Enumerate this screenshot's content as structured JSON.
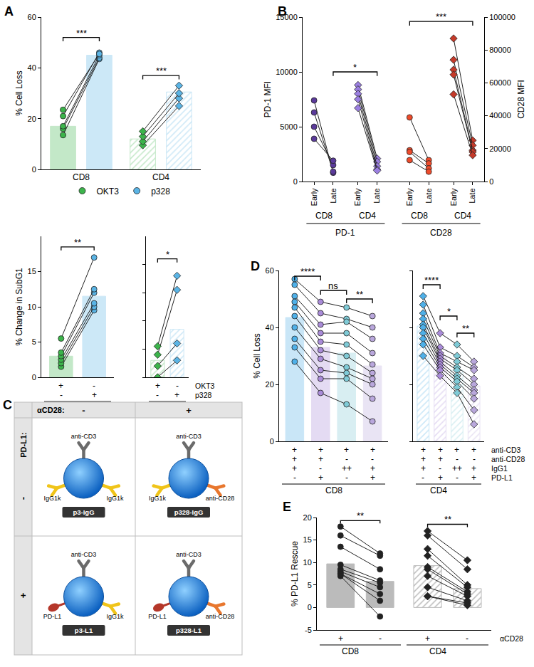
{
  "chart_data": [
    {
      "panel": "A",
      "type": "bar",
      "y_label": "% Cell Loss",
      "ylim": [
        0,
        60
      ],
      "yticks": [
        0,
        20,
        40,
        60
      ],
      "legend": "bottom",
      "conditions": [
        {
          "name": "OKT3",
          "color": "#3cb44b"
        },
        {
          "name": "p328",
          "color": "#5ab4e5"
        }
      ],
      "groups": [
        {
          "label": "CD8",
          "marker": "circle",
          "bars": [
            17,
            45
          ],
          "points": [
            [
              13.5,
              16,
              17,
              21,
              23.5
            ],
            [
              43.5,
              44,
              45,
              46,
              45.5
            ]
          ],
          "sig": [
            {
              "from": 0,
              "to": 1,
              "label": "***",
              "y": 52
            }
          ]
        },
        {
          "label": "CD4",
          "marker": "diamond",
          "bars": [
            12,
            30.5
          ],
          "points": [
            [
              9.5,
              11,
              13,
              15
            ],
            [
              25,
              28,
              30,
              33
            ]
          ],
          "sig": [
            {
              "from": 0,
              "to": 1,
              "label": "***",
              "y": 37
            }
          ]
        }
      ]
    },
    {
      "type": "bar",
      "y_label": "% Change in SubG1",
      "conditions": [
        {
          "color": "#3cb44b"
        },
        {
          "color": "#5ab4e5"
        }
      ],
      "rows": [
        {
          "label": "OKT3",
          "signs": [
            "+",
            "-"
          ]
        },
        {
          "label": "p328",
          "signs": [
            "-",
            "+"
          ]
        }
      ],
      "groups": [
        {
          "label": "CD8",
          "marker": "circle",
          "ylim": [
            0,
            20
          ],
          "yticks": [
            0,
            5,
            10,
            15
          ],
          "bars": [
            3,
            11.5
          ],
          "points": [
            [
              1.5,
              2,
              2.5,
              3,
              3.5,
              5.5
            ],
            [
              9.5,
              10,
              10.5,
              12,
              12.5,
              17
            ]
          ],
          "sig": [
            {
              "from": 0,
              "to": 1,
              "label": "**",
              "y": 18.5
            }
          ]
        },
        {
          "label": "CD4",
          "marker": "diamond",
          "ylim": [
            0,
            5
          ],
          "yticks": [
            0,
            1,
            2,
            3,
            4
          ],
          "tick_labels": false,
          "bars": [
            0.6,
            1.7
          ],
          "points": [
            [
              0,
              0.4,
              0.8,
              1.1
            ],
            [
              0.6,
              1.2,
              3.1,
              3.6
            ]
          ],
          "sig": [
            {
              "from": 0,
              "to": 1,
              "label": "*",
              "y": 4.2
            }
          ]
        }
      ]
    },
    {
      "panel": "B",
      "type": "scatter",
      "y_label": "PD-1 MFI",
      "y2_label": "CD28 MFI",
      "ylim": [
        0,
        15000
      ],
      "yticks": [
        0,
        5000,
        10000,
        15000
      ],
      "y2lim": [
        0,
        100000
      ],
      "y2ticks": [
        0,
        20000,
        40000,
        60000,
        80000,
        100000
      ],
      "x_labels": [
        "Early",
        "Late"
      ],
      "measures": [
        {
          "label": "PD-1",
          "axis": "y",
          "groups": [
            {
              "label": "CD8",
              "marker": "circle",
              "color": "#5b3a9b",
              "early": [
                7400,
                6300,
                5000,
                3900
              ],
              "late": [
                800,
                900,
                1500,
                1900
              ]
            },
            {
              "label": "CD4",
              "marker": "diamond",
              "color": "#9b7fe0",
              "early": [
                8800,
                8400,
                8000,
                7500,
                6700
              ],
              "late": [
                2100,
                1800,
                1400,
                1100,
                1000
              ]
            }
          ]
        },
        {
          "label": "CD28",
          "axis": "y2",
          "groups": [
            {
              "label": "CD8",
              "marker": "circle",
              "color": "#ee4b2b",
              "early": [
                39000,
                19000,
                18000,
                13000
              ],
              "late": [
                13000,
                11000,
                8000,
                6000
              ]
            },
            {
              "label": "CD4",
              "marker": "diamond",
              "color": "#c43a2a",
              "early": [
                87000,
                74000,
                68000,
                65000,
                53000
              ],
              "late": [
                25000,
                22000,
                19000,
                18000,
                16000
              ]
            }
          ]
        }
      ],
      "sig": [
        {
          "from": 1,
          "to": 3,
          "label": "*",
          "y": 10000
        },
        {
          "from": 4,
          "to": 7,
          "label": "***",
          "y": 14600
        }
      ]
    },
    {
      "panel": "D",
      "type": "bar",
      "y_label": "% Cell Loss",
      "ylim": [
        0,
        60
      ],
      "yticks": [
        0,
        20,
        40,
        60
      ],
      "conditions": [
        {
          "color": "#4fb0e8"
        },
        {
          "color": "#a98bd8"
        },
        {
          "color": "#7fcad6"
        },
        {
          "color": "#b9a7dc"
        }
      ],
      "rows": [
        {
          "label": "anti-CD3",
          "signs": [
            "+",
            "+",
            "+",
            "+"
          ]
        },
        {
          "label": "anti-CD28",
          "signs": [
            "+",
            "+",
            "-",
            "-"
          ]
        },
        {
          "label": "IgG1",
          "signs": [
            "+",
            "-",
            "++",
            "+"
          ]
        },
        {
          "label": "PD-L1",
          "signs": [
            "-",
            "+",
            "-",
            "+"
          ]
        }
      ],
      "groups": [
        {
          "label": "CD8",
          "marker": "circle",
          "bars": [
            43.5,
            33,
            31,
            26.5
          ],
          "points": [
            [
              57,
              55,
              51,
              49,
              47,
              44,
              40,
              36,
              33,
              28
            ],
            [
              49,
              45,
              41,
              38,
              35,
              32,
              29,
              25,
              22,
              17
            ],
            [
              47,
              43,
              42,
              38,
              34,
              30,
              26,
              24,
              22,
              13
            ],
            [
              44,
              40,
              36,
              31,
              27,
              24,
              22,
              20,
              15,
              7
            ]
          ],
          "sig": [
            {
              "from": 0,
              "to": 1,
              "label": "****",
              "y": 58
            },
            {
              "from": 1,
              "to": 2,
              "label": "ns",
              "y": 53
            },
            {
              "from": 2,
              "to": 3,
              "label": "**",
              "y": 50
            }
          ]
        },
        {
          "label": "CD4",
          "marker": "diamond",
          "tick_labels": false,
          "bars": [
            40.5,
            29.5,
            25,
            19.5
          ],
          "points": [
            [
              51,
              48,
              45,
              43,
              41,
              40,
              38,
              36,
              34,
              30
            ],
            [
              38,
              33,
              31,
              30,
              29,
              28,
              27,
              26,
              25,
              23
            ],
            [
              34,
              30,
              28,
              26,
              25,
              23,
              22,
              21,
              19,
              17
            ],
            [
              28,
              26,
              25,
              22,
              20,
              18,
              17,
              15,
              11,
              6
            ]
          ],
          "sig": [
            {
              "from": 0,
              "to": 1,
              "label": "****",
              "y": 55
            },
            {
              "from": 1,
              "to": 2,
              "label": "*",
              "y": 44
            },
            {
              "from": 2,
              "to": 3,
              "label": "**",
              "y": 38
            }
          ]
        }
      ]
    },
    {
      "panel": "E",
      "type": "bar",
      "y_label": "% PD-L1 Rescue",
      "ylim": [
        -5,
        20
      ],
      "yticks": [
        -5,
        0,
        5,
        10,
        15,
        20
      ],
      "conditions": [
        {
          "color": "#222222"
        },
        {
          "color": "#222222"
        }
      ],
      "rows": [
        {
          "label": "αCD28",
          "signs": [
            "+",
            "-"
          ]
        }
      ],
      "groups": [
        {
          "label": "CD8",
          "marker": "circle",
          "bars": [
            9.7,
            5.8
          ],
          "points": [
            [
              18,
              16,
              13.5,
              9.5,
              8.5,
              8,
              7.5,
              7.5,
              7
            ],
            [
              12,
              11.5,
              8.5,
              6,
              5.5,
              4.5,
              3,
              1.5,
              -2
            ]
          ],
          "sig": [
            {
              "from": 0,
              "to": 1,
              "label": "**",
              "y": 19.3
            }
          ]
        },
        {
          "label": "CD4",
          "marker": "diamond",
          "bars": [
            9.3,
            4.2
          ],
          "points": [
            [
              17,
              16,
              13,
              11.5,
              9,
              8.5,
              7,
              4.5,
              2.5,
              2.5
            ],
            [
              10.5,
              8.5,
              5,
              4.5,
              3.5,
              3,
              2.5,
              1.5,
              1,
              0.5
            ]
          ],
          "sig": [
            {
              "from": 0,
              "to": 1,
              "label": "**",
              "y": 18.5
            }
          ]
        }
      ]
    }
  ],
  "diagram": {
    "panel": "C",
    "column_header": "αCD28:",
    "columns": [
      "-",
      "+"
    ],
    "row_header": "PD-L1:",
    "rows": [
      "-",
      "+"
    ],
    "cells": [
      {
        "name": "p3-IgG",
        "top": "anti-CD3",
        "left": "IgG1k",
        "right": "IgG1k"
      },
      {
        "name": "p328-IgG",
        "top": "anti-CD3",
        "left": "IgG1k",
        "right": "anti-CD28"
      },
      {
        "name": "p3-L1",
        "top": "anti-CD3",
        "left": "PD-L1",
        "right": "IgG1k"
      },
      {
        "name": "p328-L1",
        "top": "anti-CD3",
        "left": "PD-L1",
        "right": "anti-CD28"
      }
    ]
  }
}
